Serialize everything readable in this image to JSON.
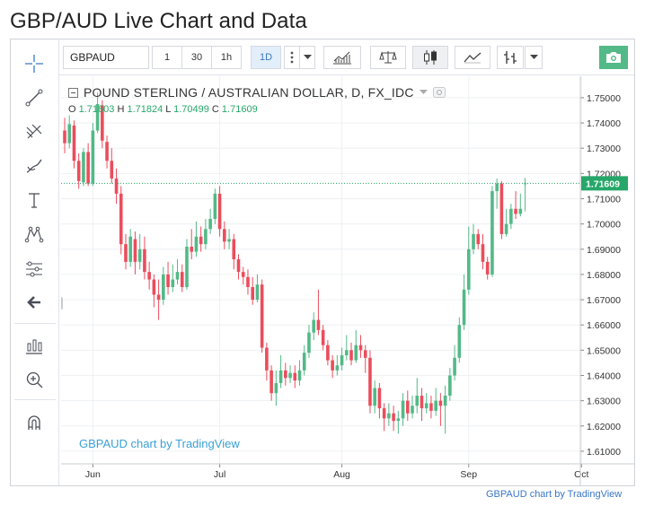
{
  "page": {
    "title": "GBP/AUD Live Chart and Data",
    "footer_credit": "GBPAUD chart by TradingView"
  },
  "toolbar": {
    "symbol": "GBPAUD",
    "intervals": [
      "1",
      "30",
      "1h",
      "1D"
    ],
    "active_interval": "1D",
    "icons": [
      "more-vertical-icon",
      "chevron-down-icon",
      "indicators-icon",
      "compare-icon",
      "candles-icon",
      "line-style-icon",
      "bars-icon",
      "chevron-down-icon",
      "camera-icon"
    ]
  },
  "left_toolbar": {
    "icons": [
      "crosshair-icon",
      "trend-line-icon",
      "fib-tool-icon",
      "brush-icon",
      "text-icon",
      "pattern-icon",
      "prediction-icon",
      "back-arrow-icon",
      "measure-icon",
      "zoom-icon",
      "magnet-icon"
    ]
  },
  "legend": {
    "title": "POUND STERLING / AUSTRALIAN DOLLAR, D, FX_IDC",
    "open_label": "O",
    "open": "1.71603",
    "high_label": "H",
    "high": "1.71824",
    "low_label": "L",
    "low": "1.70499",
    "close_label": "C",
    "close": "1.71609"
  },
  "watermark": "GBPAUD chart by TradingView",
  "colors": {
    "up": "#53b987",
    "down": "#eb4d5c",
    "price_tag": "#26a769",
    "grid": "#eef0f3"
  },
  "chart_data": {
    "type": "candlestick",
    "title": "POUND STERLING / AUSTRALIAN DOLLAR, D, FX_IDC",
    "ylim": [
      1.605,
      1.7585
    ],
    "y_ticks": [
      1.61,
      1.62,
      1.63,
      1.64,
      1.65,
      1.66,
      1.67,
      1.68,
      1.69,
      1.7,
      1.71,
      1.72,
      1.73,
      1.74,
      1.75
    ],
    "x_ticks": [
      {
        "label": "Jun",
        "index": 6
      },
      {
        "label": "Jul",
        "index": 33
      },
      {
        "label": "Aug",
        "index": 59
      },
      {
        "label": "Sep",
        "index": 86
      },
      {
        "label": "Oct",
        "index": 110
      }
    ],
    "last_price": "1.71609",
    "candles": [
      [
        1.737,
        1.732,
        1.742,
        1.728
      ],
      [
        1.732,
        1.7395,
        1.743,
        1.73
      ],
      [
        1.739,
        1.725,
        1.741,
        1.722
      ],
      [
        1.725,
        1.717,
        1.728,
        1.714
      ],
      [
        1.7165,
        1.7285,
        1.73,
        1.715
      ],
      [
        1.7285,
        1.716,
        1.732,
        1.715
      ],
      [
        1.716,
        1.737,
        1.74,
        1.715
      ],
      [
        1.737,
        1.7475,
        1.752,
        1.736
      ],
      [
        1.747,
        1.733,
        1.749,
        1.73
      ],
      [
        1.7325,
        1.725,
        1.735,
        1.722
      ],
      [
        1.725,
        1.718,
        1.73,
        1.716
      ],
      [
        1.718,
        1.712,
        1.722,
        1.708
      ],
      [
        1.712,
        1.692,
        1.715,
        1.688
      ],
      [
        1.692,
        1.685,
        1.696,
        1.682
      ],
      [
        1.685,
        1.695,
        1.698,
        1.683
      ],
      [
        1.694,
        1.685,
        1.697,
        1.68
      ],
      [
        1.685,
        1.69,
        1.696,
        1.682
      ],
      [
        1.69,
        1.681,
        1.695,
        1.678
      ],
      [
        1.681,
        1.678,
        1.685,
        1.674
      ],
      [
        1.678,
        1.672,
        1.68,
        1.667
      ],
      [
        1.672,
        1.67,
        1.678,
        1.662
      ],
      [
        1.67,
        1.68,
        1.683,
        1.668
      ],
      [
        1.68,
        1.675,
        1.685,
        1.672
      ],
      [
        1.675,
        1.678,
        1.684,
        1.673
      ],
      [
        1.678,
        1.681,
        1.686,
        1.676
      ],
      [
        1.681,
        1.675,
        1.684,
        1.673
      ],
      [
        1.675,
        1.691,
        1.694,
        1.674
      ],
      [
        1.691,
        1.689,
        1.698,
        1.686
      ],
      [
        1.689,
        1.695,
        1.701,
        1.687
      ],
      [
        1.695,
        1.692,
        1.699,
        1.689
      ],
      [
        1.692,
        1.698,
        1.702,
        1.69
      ],
      [
        1.698,
        1.702,
        1.706,
        1.696
      ],
      [
        1.702,
        1.712,
        1.714,
        1.7
      ],
      [
        1.712,
        1.698,
        1.715,
        1.695
      ],
      [
        1.698,
        1.693,
        1.701,
        1.69
      ],
      [
        1.693,
        1.694,
        1.698,
        1.69
      ],
      [
        1.694,
        1.686,
        1.696,
        1.682
      ],
      [
        1.686,
        1.681,
        1.688,
        1.678
      ],
      [
        1.681,
        1.679,
        1.683,
        1.676
      ],
      [
        1.679,
        1.675,
        1.682,
        1.672
      ],
      [
        1.675,
        1.67,
        1.679,
        1.668
      ],
      [
        1.67,
        1.676,
        1.68,
        1.669
      ],
      [
        1.676,
        1.651,
        1.678,
        1.649
      ],
      [
        1.651,
        1.642,
        1.653,
        1.638
      ],
      [
        1.642,
        1.633,
        1.644,
        1.63
      ],
      [
        1.633,
        1.637,
        1.642,
        1.628
      ],
      [
        1.637,
        1.642,
        1.648,
        1.635
      ],
      [
        1.642,
        1.639,
        1.645,
        1.636
      ],
      [
        1.639,
        1.641,
        1.644,
        1.637
      ],
      [
        1.641,
        1.638,
        1.644,
        1.635
      ],
      [
        1.638,
        1.642,
        1.646,
        1.636
      ],
      [
        1.642,
        1.649,
        1.652,
        1.64
      ],
      [
        1.649,
        1.657,
        1.66,
        1.647
      ],
      [
        1.657,
        1.662,
        1.665,
        1.654
      ],
      [
        1.662,
        1.658,
        1.674,
        1.656
      ],
      [
        1.658,
        1.652,
        1.66,
        1.65
      ],
      [
        1.652,
        1.646,
        1.654,
        1.644
      ],
      [
        1.646,
        1.642,
        1.648,
        1.639
      ],
      [
        1.642,
        1.644,
        1.648,
        1.64
      ],
      [
        1.644,
        1.648,
        1.651,
        1.642
      ],
      [
        1.648,
        1.65,
        1.656,
        1.646
      ],
      [
        1.65,
        1.646,
        1.653,
        1.644
      ],
      [
        1.646,
        1.652,
        1.658,
        1.645
      ],
      [
        1.652,
        1.65,
        1.656,
        1.647
      ],
      [
        1.65,
        1.647,
        1.652,
        1.641
      ],
      [
        1.647,
        1.628,
        1.65,
        1.625
      ],
      [
        1.628,
        1.635,
        1.638,
        1.625
      ],
      [
        1.635,
        1.627,
        1.637,
        1.623
      ],
      [
        1.627,
        1.623,
        1.629,
        1.618
      ],
      [
        1.623,
        1.625,
        1.629,
        1.62
      ],
      [
        1.625,
        1.622,
        1.628,
        1.618
      ],
      [
        1.622,
        1.623,
        1.626,
        1.617
      ],
      [
        1.623,
        1.63,
        1.633,
        1.62
      ],
      [
        1.63,
        1.625,
        1.634,
        1.622
      ],
      [
        1.625,
        1.628,
        1.632,
        1.623
      ],
      [
        1.628,
        1.632,
        1.639,
        1.625
      ],
      [
        1.632,
        1.627,
        1.635,
        1.622
      ],
      [
        1.627,
        1.629,
        1.633,
        1.625
      ],
      [
        1.629,
        1.626,
        1.632,
        1.623
      ],
      [
        1.626,
        1.63,
        1.635,
        1.624
      ],
      [
        1.63,
        1.628,
        1.633,
        1.62
      ],
      [
        1.628,
        1.632,
        1.636,
        1.617
      ],
      [
        1.632,
        1.64,
        1.643,
        1.63
      ],
      [
        1.64,
        1.647,
        1.652,
        1.638
      ],
      [
        1.647,
        1.66,
        1.663,
        1.645
      ],
      [
        1.66,
        1.674,
        1.68,
        1.658
      ],
      [
        1.674,
        1.69,
        1.699,
        1.672
      ],
      [
        1.69,
        1.696,
        1.7,
        1.688
      ],
      [
        1.696,
        1.692,
        1.698,
        1.69
      ],
      [
        1.692,
        1.685,
        1.696,
        1.682
      ],
      [
        1.685,
        1.68,
        1.687,
        1.678
      ],
      [
        1.68,
        1.713,
        1.715,
        1.679
      ],
      [
        1.713,
        1.716,
        1.718,
        1.706
      ],
      [
        1.716,
        1.696,
        1.717,
        1.694
      ],
      [
        1.696,
        1.7,
        1.706,
        1.695
      ],
      [
        1.7,
        1.706,
        1.708,
        1.698
      ],
      [
        1.706,
        1.704,
        1.713,
        1.702
      ],
      [
        1.704,
        1.706,
        1.712,
        1.703
      ],
      [
        1.71603,
        1.71609,
        1.71824,
        1.70499
      ]
    ]
  }
}
